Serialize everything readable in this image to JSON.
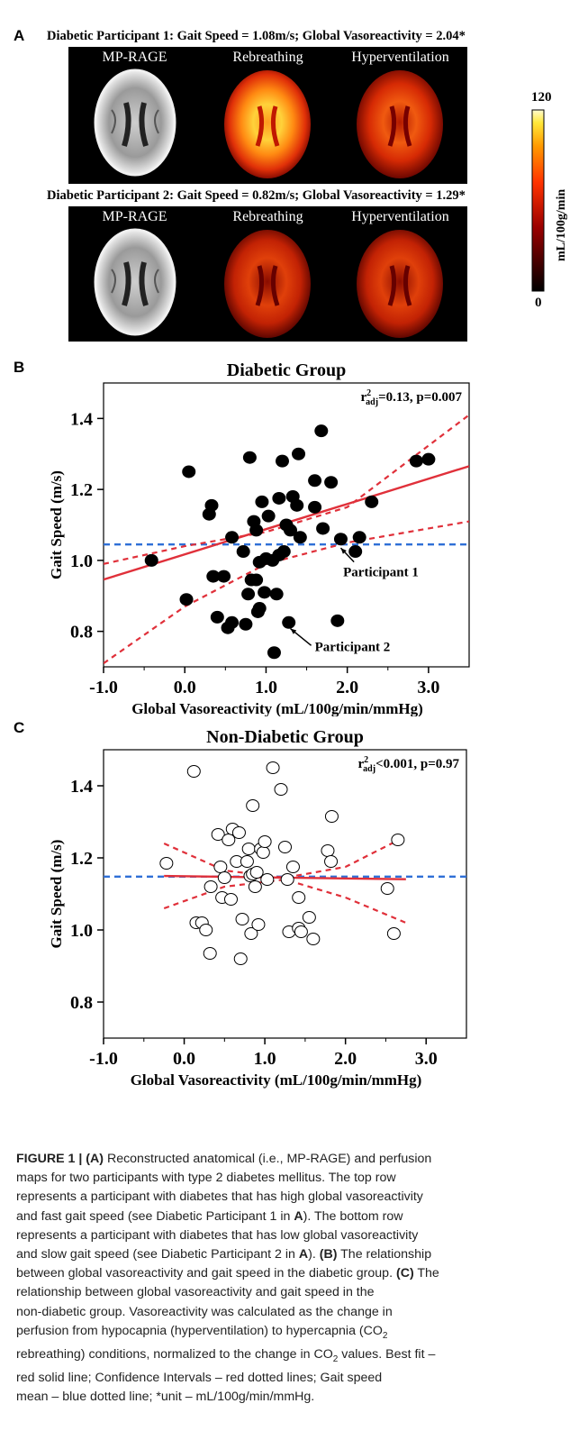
{
  "panel_a": {
    "letter": "A",
    "row1_title": "Diabetic Participant 1:  Gait Speed = 1.08m/s; Global Vasoreactivity = 2.04*",
    "row2_title": "Diabetic Participant 2:  Gait Speed = 0.82m/s; Global Vasoreactivity = 1.29*",
    "labels": [
      "MP-RAGE",
      "Rebreathing",
      "Hyperventilation"
    ],
    "colorbar": {
      "max": "120",
      "min": "0",
      "unit": "mL/100g/min"
    }
  },
  "chart_data": [
    {
      "type": "scatter",
      "panel": "B",
      "title": "Diabetic Group",
      "stat": "r²adj=0.13, p=0.007",
      "stat_parts": [
        "r",
        "2",
        "adj",
        "=0.13, p=0.007"
      ],
      "xlabel": "Global Vasoreactivity (mL/100g/min/mmHg)",
      "ylabel": "Gait Speed (m/s)",
      "xlim": [
        -1.0,
        3.5
      ],
      "ylim": [
        0.7,
        1.5
      ],
      "xticks": [
        "-1.0",
        "0.0",
        "1.0",
        "2.0",
        "3.0"
      ],
      "xtick_values": [
        -1.0,
        0.0,
        1.0,
        2.0,
        3.0
      ],
      "yticks": [
        "0.8",
        "1.0",
        "1.2",
        "1.4"
      ],
      "ytick_values": [
        0.8,
        1.0,
        1.2,
        1.4
      ],
      "marker": "filled",
      "fit": {
        "intercept": 1.017,
        "slope": 0.071
      },
      "ci_upper": [
        [
          -1.0,
          0.99
        ],
        [
          0.0,
          1.04
        ],
        [
          1.0,
          1.08
        ],
        [
          2.0,
          1.15
        ],
        [
          3.5,
          1.41
        ]
      ],
      "ci_lower": [
        [
          -1.0,
          0.71
        ],
        [
          0.0,
          0.87
        ],
        [
          1.0,
          0.99
        ],
        [
          2.0,
          1.05
        ],
        [
          3.5,
          1.11
        ]
      ],
      "mean": 1.045,
      "points": [
        [
          -0.41,
          1.0
        ],
        [
          0.05,
          1.25
        ],
        [
          0.02,
          0.89
        ],
        [
          0.3,
          1.13
        ],
        [
          0.33,
          1.155
        ],
        [
          0.35,
          0.955
        ],
        [
          0.4,
          0.84
        ],
        [
          0.48,
          0.955
        ],
        [
          0.53,
          0.81
        ],
        [
          0.58,
          1.065
        ],
        [
          0.58,
          0.825
        ],
        [
          0.72,
          1.025
        ],
        [
          0.75,
          0.82
        ],
        [
          0.78,
          0.905
        ],
        [
          0.8,
          1.29
        ],
        [
          0.82,
          0.945
        ],
        [
          0.85,
          1.11
        ],
        [
          0.88,
          0.945
        ],
        [
          0.88,
          1.085
        ],
        [
          0.9,
          0.855
        ],
        [
          0.92,
          0.865
        ],
        [
          0.92,
          0.995
        ],
        [
          0.95,
          1.165
        ],
        [
          0.98,
          0.91
        ],
        [
          1.0,
          1.005
        ],
        [
          1.03,
          1.125
        ],
        [
          1.08,
          1.0
        ],
        [
          1.1,
          0.74
        ],
        [
          1.13,
          0.905
        ],
        [
          1.16,
          1.015
        ],
        [
          1.16,
          1.175
        ],
        [
          1.2,
          1.28
        ],
        [
          1.22,
          1.025
        ],
        [
          1.25,
          1.1
        ],
        [
          1.28,
          0.825
        ],
        [
          1.3,
          1.085
        ],
        [
          1.33,
          1.18
        ],
        [
          1.38,
          1.155
        ],
        [
          1.4,
          1.3
        ],
        [
          1.42,
          1.065
        ],
        [
          1.6,
          1.225
        ],
        [
          1.6,
          1.15
        ],
        [
          1.68,
          1.365
        ],
        [
          1.7,
          1.09
        ],
        [
          1.8,
          1.22
        ],
        [
          1.88,
          0.83
        ],
        [
          1.92,
          1.06
        ],
        [
          2.1,
          1.025
        ],
        [
          2.15,
          1.065
        ],
        [
          2.3,
          1.165
        ],
        [
          2.85,
          1.28
        ],
        [
          3.0,
          1.285
        ]
      ],
      "annotations": [
        {
          "text": "Participant 1",
          "x": 1.95,
          "y": 0.955,
          "arrow_to": [
            1.92,
            1.045
          ]
        },
        {
          "text": "Participant 2",
          "x": 1.6,
          "y": 0.745,
          "arrow_to": [
            1.3,
            0.818
          ]
        }
      ]
    },
    {
      "type": "scatter",
      "panel": "C",
      "title": "Non-Diabetic Group",
      "stat": "r²adj<0.001, p=0.97",
      "stat_parts": [
        "r",
        "2",
        "adj",
        "<0.001, p=0.97"
      ],
      "xlabel": "Global Vasoreactivity (mL/100g/min/mmHg)",
      "ylabel": "Gait Speed (m/s)",
      "xlim": [
        -1.0,
        3.5
      ],
      "ylim": [
        0.7,
        1.5
      ],
      "xticks": [
        "-1.0",
        "0.0",
        "1.0",
        "2.0",
        "3.0"
      ],
      "xtick_values": [
        -1.0,
        0.0,
        1.0,
        2.0,
        3.0
      ],
      "yticks": [
        "0.8",
        "1.0",
        "1.2",
        "1.4"
      ],
      "ytick_values": [
        0.8,
        1.0,
        1.2,
        1.4
      ],
      "marker": "open",
      "fit": {
        "intercept": 1.149,
        "slope": -0.003
      },
      "ci_upper": [
        [
          -0.25,
          1.24
        ],
        [
          0.5,
          1.165
        ],
        [
          1.25,
          1.145
        ],
        [
          2.0,
          1.175
        ],
        [
          2.75,
          1.26
        ]
      ],
      "ci_lower": [
        [
          -0.25,
          1.06
        ],
        [
          0.5,
          1.12
        ],
        [
          1.25,
          1.14
        ],
        [
          2.0,
          1.09
        ],
        [
          2.75,
          1.02
        ]
      ],
      "mean": 1.148,
      "points": [
        [
          -0.22,
          1.185
        ],
        [
          0.12,
          1.44
        ],
        [
          0.15,
          1.02
        ],
        [
          0.22,
          1.02
        ],
        [
          0.27,
          1.0
        ],
        [
          0.32,
          0.935
        ],
        [
          0.33,
          1.12
        ],
        [
          0.42,
          1.265
        ],
        [
          0.45,
          1.175
        ],
        [
          0.47,
          1.09
        ],
        [
          0.5,
          1.145
        ],
        [
          0.55,
          1.25
        ],
        [
          0.58,
          1.085
        ],
        [
          0.6,
          1.28
        ],
        [
          0.65,
          1.19
        ],
        [
          0.68,
          1.27
        ],
        [
          0.7,
          0.92
        ],
        [
          0.72,
          1.03
        ],
        [
          0.78,
          1.19
        ],
        [
          0.8,
          1.225
        ],
        [
          0.82,
          1.15
        ],
        [
          0.83,
          0.99
        ],
        [
          0.85,
          1.345
        ],
        [
          0.85,
          1.155
        ],
        [
          0.88,
          1.12
        ],
        [
          0.9,
          1.16
        ],
        [
          0.92,
          1.015
        ],
        [
          0.95,
          1.225
        ],
        [
          0.98,
          1.215
        ],
        [
          1.0,
          1.245
        ],
        [
          1.03,
          1.14
        ],
        [
          1.1,
          1.45
        ],
        [
          1.2,
          1.39
        ],
        [
          1.25,
          1.23
        ],
        [
          1.28,
          1.14
        ],
        [
          1.3,
          0.995
        ],
        [
          1.35,
          1.175
        ],
        [
          1.42,
          1.09
        ],
        [
          1.42,
          1.005
        ],
        [
          1.45,
          0.995
        ],
        [
          1.55,
          1.035
        ],
        [
          1.6,
          0.975
        ],
        [
          1.78,
          1.22
        ],
        [
          1.82,
          1.19
        ],
        [
          1.83,
          1.315
        ],
        [
          2.52,
          1.115
        ],
        [
          2.6,
          0.99
        ],
        [
          2.65,
          1.25
        ]
      ],
      "annotations": []
    }
  ],
  "caption": {
    "fig_label": "FIGURE 1 | ",
    "a_label": "(A)",
    "text1": " Reconstructed anatomical (i.e., MP-RAGE) and perfusion",
    "line2": "maps for two participants with type 2 diabetes mellitus. The top row",
    "line3": "represents a participant with diabetes that has high global vasoreactivity",
    "line4a": "and fast gait speed (see Diabetic Participant 1 in ",
    "ref_a": "A",
    "line4b": "). The bottom row",
    "line5": "represents a participant with diabetes that has low global vasoreactivity",
    "line6a": "and slow gait speed (see Diabetic Participant 2 in ",
    "line6b": "). ",
    "b_label": "(B)",
    "line6c": " The relationship",
    "line7a": "between global vasoreactivity and gait speed in the diabetic group. ",
    "c_label": "(C)",
    "line7b": " The",
    "line8": "relationship between global vasoreactivity and gait speed in the",
    "line9": "non-diabetic group. Vasoreactivity was calculated as the change in",
    "line10": "perfusion from hypocapnia (hyperventilation) to hypercapnia (CO",
    "line11a": "rebreathing) conditions, normalized to the change in CO",
    "line11b": " values. Best fit –",
    "line12": "red solid line; Confidence Intervals – red dotted lines; Gait speed",
    "line13": "mean – blue dotted line; *unit – mL/100g/min/mmHg.",
    "sub2": "2"
  },
  "colors": {
    "fit": "#e0303a",
    "mean": "#2f6fd6",
    "marker": "#000000"
  }
}
